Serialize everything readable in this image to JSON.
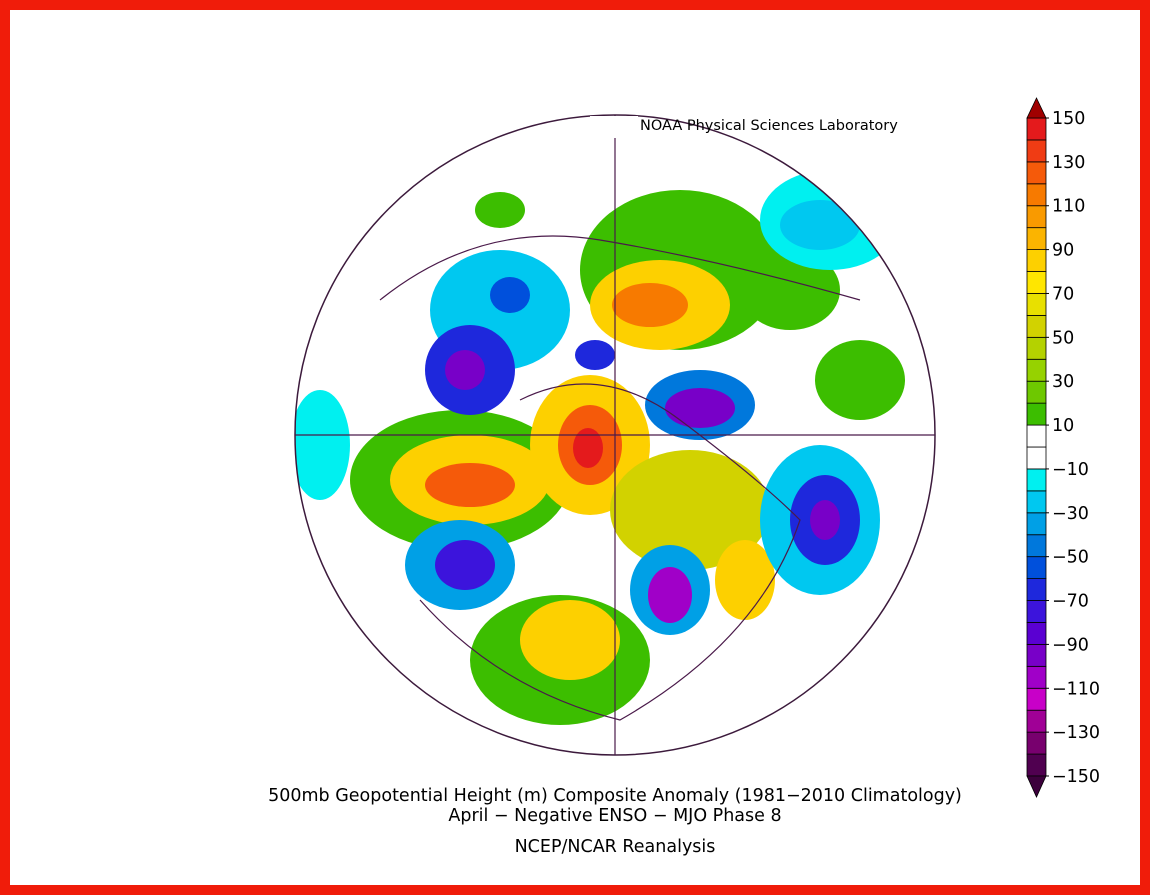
{
  "header": {
    "lab": "NOAA Physical Sciences Laboratory"
  },
  "caption": {
    "title": "500mb Geopotential Height (m) Composite Anomaly (1981−2010 Climatology)",
    "subtitle": "April − Negative ENSO − MJO Phase 8",
    "source": "NCEP/NCAR Reanalysis"
  },
  "colorbar": {
    "range": [
      -150,
      150
    ],
    "ticks": [
      150,
      130,
      110,
      90,
      70,
      50,
      30,
      10,
      {
        "value": -10,
        "label": "−10"
      },
      {
        "value": -30,
        "label": "−30"
      },
      {
        "value": -50,
        "label": "−50"
      },
      {
        "value": -70,
        "label": "−70"
      },
      {
        "value": -90,
        "label": "−90"
      },
      {
        "value": -110,
        "label": "−110"
      },
      {
        "value": -130,
        "label": "−130"
      },
      {
        "value": -150,
        "label": "−150"
      }
    ],
    "colors": [
      "#500050",
      "#78006e",
      "#a00096",
      "#c800c8",
      "#a000c8",
      "#7800c8",
      "#5a00d2",
      "#3c14dc",
      "#1e28dc",
      "#0050dc",
      "#0078dc",
      "#00a0e6",
      "#00c8f0",
      "#00f0f0",
      "#ffffff",
      "#ffffff",
      "#3cbe00",
      "#6ec800",
      "#96d200",
      "#b4d200",
      "#d2d200",
      "#e8e000",
      "#ffe600",
      "#fdd000",
      "#fbb400",
      "#f99a00",
      "#f77a00",
      "#f55a0a",
      "#f03c14",
      "#e41a1c"
    ],
    "extend_colors": [
      "#3c003c",
      "#a00000"
    ]
  }
}
